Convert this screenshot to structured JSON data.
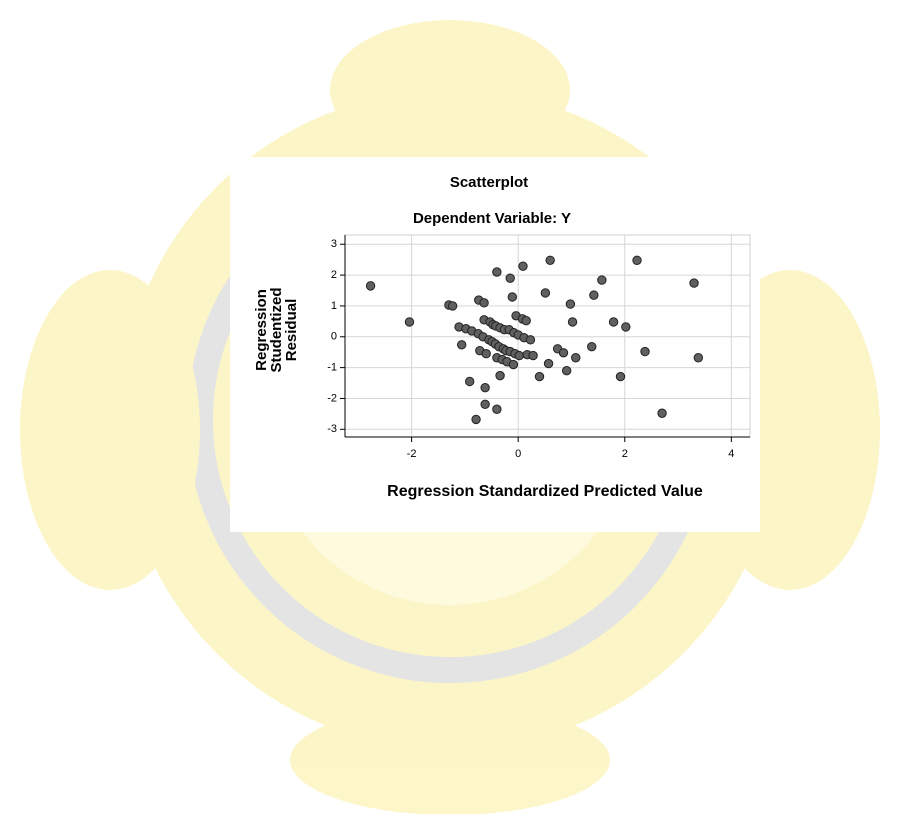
{
  "chart_data": {
    "type": "scatter",
    "title": "Scatterplot",
    "subtitle": "Dependent Variable: Y",
    "xlabel": "Regression Standardized Predicted Value",
    "ylabel_lines": [
      "Regression",
      "Studentized",
      "Residual"
    ],
    "xlim": [
      -3.25,
      4.35
    ],
    "ylim": [
      -3.25,
      3.3
    ],
    "xticks": [
      -2,
      0,
      2,
      4
    ],
    "yticks": [
      -3,
      -2,
      -1,
      0,
      1,
      2,
      3
    ],
    "grid": true,
    "color": "#606060",
    "x": [
      -2.77,
      -2.04,
      -1.3,
      -1.23,
      -1.11,
      -1.06,
      -0.98,
      -0.91,
      -0.87,
      -0.79,
      -0.75,
      -0.74,
      -0.72,
      -0.66,
      -0.64,
      -0.64,
      -0.62,
      -0.62,
      -0.6,
      -0.55,
      -0.53,
      -0.49,
      -0.47,
      -0.43,
      -0.42,
      -0.4,
      -0.4,
      -0.4,
      -0.36,
      -0.34,
      -0.34,
      -0.3,
      -0.28,
      -0.26,
      -0.23,
      -0.21,
      -0.17,
      -0.15,
      -0.15,
      -0.11,
      -0.09,
      -0.08,
      -0.06,
      -0.04,
      0,
      0.02,
      0.08,
      0.09,
      0.11,
      0.15,
      0.17,
      0.23,
      0.28,
      0.4,
      0.51,
      0.57,
      0.6,
      0.74,
      0.85,
      0.91,
      0.98,
      1.02,
      1.08,
      1.38,
      1.42,
      1.57,
      1.79,
      1.92,
      2.02,
      2.23,
      2.38,
      2.7,
      3.3,
      3.38
    ],
    "values": [
      1.65,
      0.48,
      1.03,
      1.0,
      0.32,
      -0.26,
      0.26,
      -1.45,
      0.19,
      -2.68,
      0.1,
      1.19,
      -0.45,
      0.0,
      1.1,
      0.55,
      -1.65,
      -2.19,
      -0.55,
      -0.1,
      0.48,
      -0.16,
      0.39,
      -0.23,
      0.35,
      2.1,
      -0.68,
      -2.35,
      -0.32,
      0.29,
      -1.26,
      -0.74,
      -0.39,
      0.23,
      -0.45,
      -0.81,
      0.23,
      1.9,
      -0.48,
      1.29,
      -0.9,
      0.13,
      -0.55,
      0.68,
      0.06,
      -0.61,
      0.58,
      2.29,
      -0.03,
      0.52,
      -0.58,
      -0.1,
      -0.61,
      -1.29,
      1.42,
      -0.87,
      2.48,
      -0.39,
      -0.52,
      -1.1,
      1.06,
      0.48,
      -0.68,
      -0.32,
      1.35,
      1.84,
      0.48,
      -1.29,
      0.32,
      2.48,
      -0.48,
      -2.48,
      1.74,
      -0.68
    ]
  }
}
